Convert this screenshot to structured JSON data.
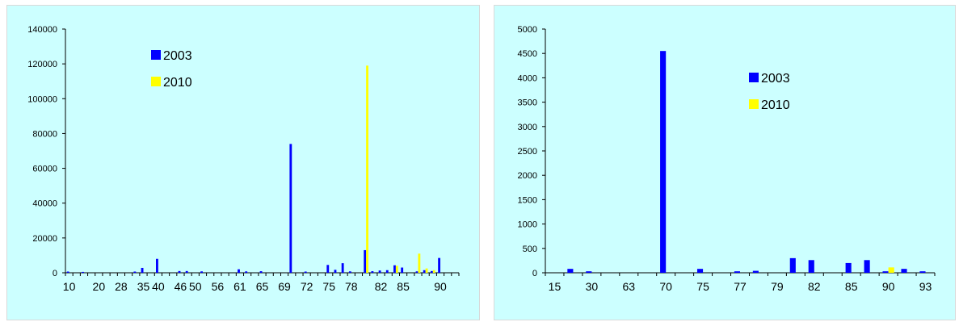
{
  "chart_data": [
    {
      "type": "bar",
      "title": "",
      "xlabel": "",
      "ylabel": "",
      "ylim": [
        0,
        140000
      ],
      "yticks": [
        0,
        20000,
        40000,
        60000,
        80000,
        100000,
        120000,
        140000
      ],
      "ytick_labels": [
        "0",
        "20000",
        "40000",
        "60000",
        "80000",
        "100000",
        "120000",
        "140000"
      ],
      "categories": [
        "10",
        "13",
        "16",
        "18",
        "20",
        "23",
        "25",
        "28",
        "30",
        "33",
        "35",
        "37",
        "40",
        "42",
        "44",
        "46",
        "48",
        "50",
        "52",
        "54",
        "56",
        "58",
        "60",
        "61",
        "62",
        "64",
        "65",
        "67",
        "68",
        "69",
        "70",
        "71",
        "72",
        "73",
        "74",
        "75",
        "76",
        "77",
        "78",
        "79",
        "80",
        "81",
        "82",
        "83",
        "84",
        "85",
        "86",
        "87",
        "88",
        "89",
        "90",
        "91",
        "92"
      ],
      "xtick_labels": [
        "10",
        "20",
        "28",
        "35",
        "40",
        "46",
        "50",
        "56",
        "61",
        "65",
        "69",
        "72",
        "75",
        "78",
        "82",
        "85",
        "90"
      ],
      "legend_position": "top-center",
      "grid": false,
      "series": [
        {
          "name": "2003",
          "color": "#0000ff",
          "values": [
            700,
            0,
            500,
            0,
            0,
            0,
            0,
            0,
            0,
            700,
            2800,
            0,
            8000,
            0,
            0,
            1000,
            1000,
            0,
            800,
            0,
            0,
            0,
            0,
            2000,
            800,
            0,
            900,
            0,
            0,
            0,
            74000,
            0,
            700,
            0,
            0,
            4500,
            1700,
            5500,
            800,
            0,
            13000,
            900,
            1300,
            1500,
            4300,
            3000,
            0,
            800,
            1500,
            1000,
            8500,
            0,
            0
          ]
        },
        {
          "name": "2010",
          "color": "#ffff00",
          "values": [
            0,
            0,
            0,
            0,
            0,
            0,
            0,
            0,
            0,
            0,
            0,
            0,
            0,
            0,
            0,
            0,
            0,
            0,
            0,
            0,
            0,
            0,
            0,
            0,
            0,
            0,
            0,
            0,
            0,
            0,
            0,
            0,
            0,
            0,
            0,
            0,
            0,
            0,
            0,
            0,
            119000,
            0,
            0,
            0,
            4000,
            0,
            0,
            11000,
            2500,
            1500,
            0,
            0,
            0
          ]
        }
      ]
    },
    {
      "type": "bar",
      "title": "",
      "xlabel": "",
      "ylabel": "",
      "ylim": [
        0,
        5000
      ],
      "yticks": [
        0,
        500,
        1000,
        1500,
        2000,
        2500,
        3000,
        3500,
        4000,
        4500,
        5000
      ],
      "ytick_labels": [
        "0",
        "500",
        "1000",
        "1500",
        "2000",
        "2500",
        "3000",
        "3500",
        "4000",
        "4500",
        "5000"
      ],
      "categories": [
        "15",
        "28",
        "30",
        "45",
        "63",
        "68",
        "70",
        "72",
        "75",
        "76",
        "77",
        "78",
        "79",
        "80",
        "82",
        "84",
        "85",
        "86",
        "90",
        "91",
        "93"
      ],
      "xtick_labels": [
        "15",
        "30",
        "63",
        "70",
        "75",
        "77",
        "79",
        "82",
        "85",
        "90",
        "93"
      ],
      "legend_position": "top-right",
      "grid": false,
      "series": [
        {
          "name": "2003",
          "color": "#0000ff",
          "values": [
            0,
            80,
            30,
            0,
            0,
            0,
            4550,
            0,
            80,
            0,
            30,
            40,
            0,
            300,
            260,
            0,
            200,
            260,
            30,
            80,
            30
          ]
        },
        {
          "name": "2010",
          "color": "#ffff00",
          "values": [
            0,
            0,
            0,
            0,
            0,
            0,
            0,
            0,
            0,
            0,
            0,
            0,
            0,
            0,
            0,
            0,
            0,
            0,
            110,
            0,
            0
          ]
        }
      ]
    }
  ]
}
